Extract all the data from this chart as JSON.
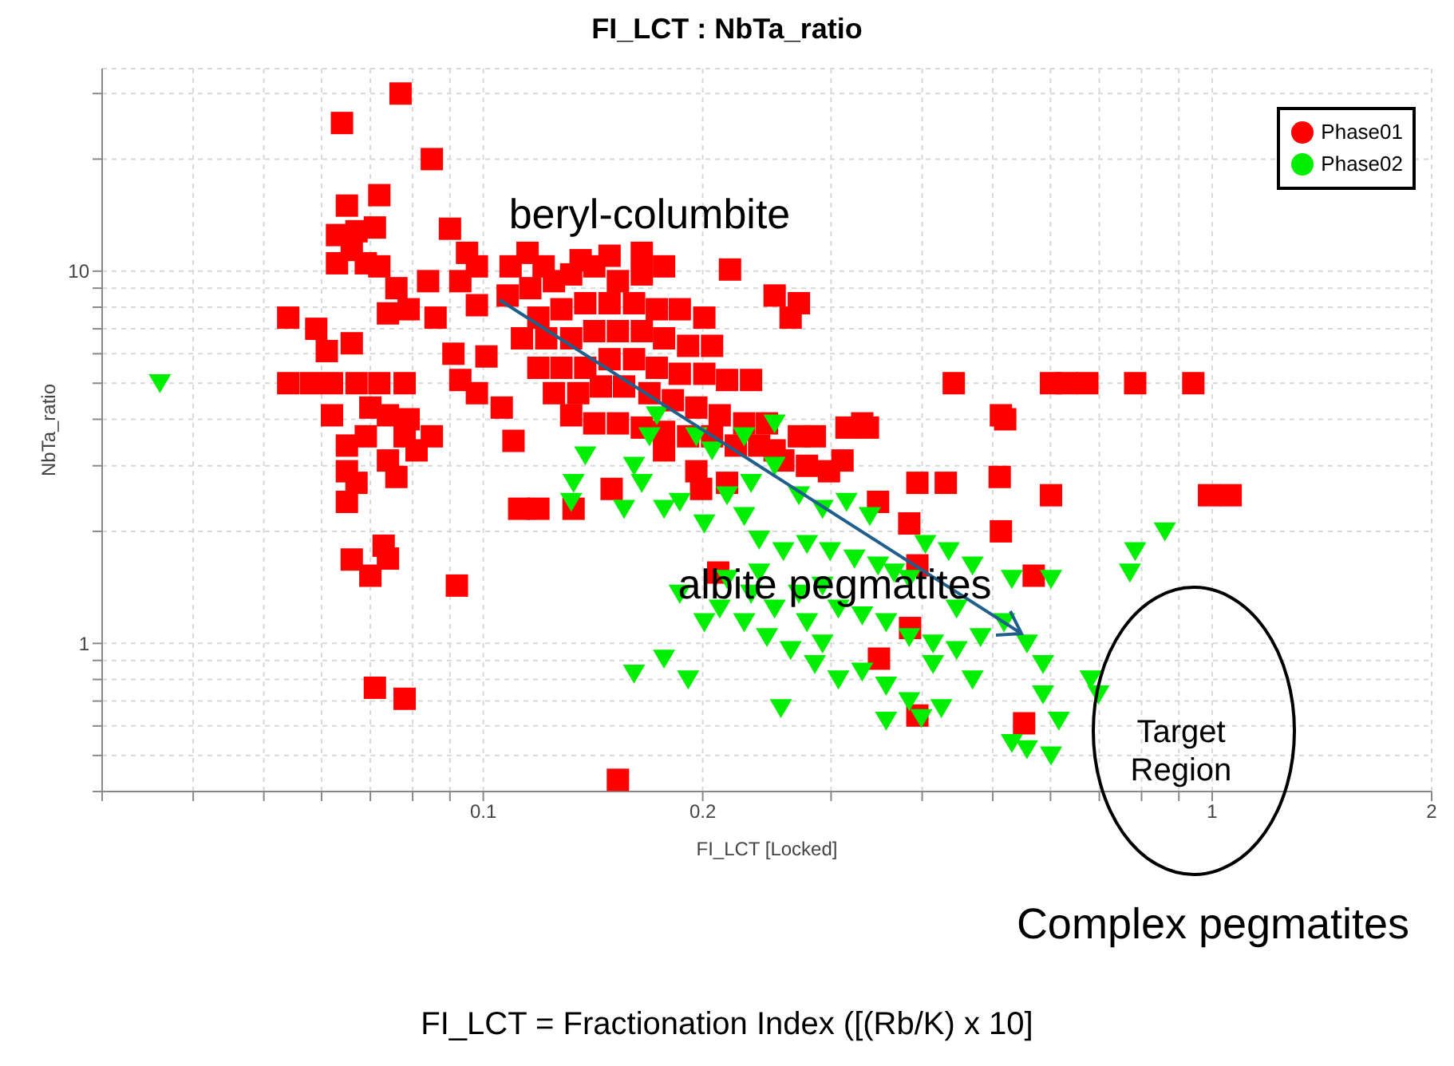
{
  "chart_data": {
    "type": "scatter",
    "title": "FI_LCT : NbTa_ratio",
    "xlabel": "FI_LCT [Locked]",
    "ylabel": "NbTa_ratio",
    "log": "xy",
    "grid": true,
    "legend": "top right",
    "xlim": [
      0.03,
      2
    ],
    "ylim": [
      0.4,
      35
    ],
    "xticks": [
      {
        "value": 0.03,
        "label": null
      },
      {
        "value": 0.04,
        "label": null
      },
      {
        "value": 0.05,
        "label": null
      },
      {
        "value": 0.06,
        "label": null
      },
      {
        "value": 0.07,
        "label": null
      },
      {
        "value": 0.08,
        "label": null
      },
      {
        "value": 0.09,
        "label": null
      },
      0.1,
      0.2,
      {
        "value": 0.3,
        "label": null
      },
      {
        "value": 0.4,
        "label": null
      },
      {
        "value": 0.5,
        "label": null
      },
      {
        "value": 0.6,
        "label": null
      },
      {
        "value": 0.7,
        "label": null
      },
      {
        "value": 0.8,
        "label": null
      },
      {
        "value": 0.9,
        "label": null
      },
      1,
      2
    ],
    "yticks": [
      {
        "value": 0.4,
        "label": null
      },
      {
        "value": 0.5,
        "label": null
      },
      {
        "value": 0.6,
        "label": null
      },
      {
        "value": 0.7,
        "label": null
      },
      {
        "value": 0.8,
        "label": null
      },
      {
        "value": 0.9,
        "label": null
      },
      1,
      {
        "value": 2,
        "label": null
      },
      {
        "value": 3,
        "label": null
      },
      {
        "value": 4,
        "label": null
      },
      {
        "value": 5,
        "label": null
      },
      {
        "value": 6,
        "label": null
      },
      {
        "value": 7,
        "label": null
      },
      {
        "value": 8,
        "label": null
      },
      {
        "value": 9,
        "label": null
      },
      10,
      {
        "value": 20,
        "label": null
      },
      {
        "value": 30,
        "label": null
      }
    ],
    "series": [
      {
        "name": "Phase01",
        "color": "#ff0000",
        "marker": "square",
        "x": [
          0.077,
          0.064,
          0.085,
          0.072,
          0.065,
          0.063,
          0.067,
          0.071,
          0.09,
          0.095,
          0.063,
          0.066,
          0.069,
          0.072,
          0.054,
          0.059,
          0.061,
          0.066,
          0.074,
          0.079,
          0.086,
          0.093,
          0.098,
          0.084,
          0.076,
          0.054,
          0.058,
          0.062,
          0.067,
          0.072,
          0.078,
          0.07,
          0.074,
          0.079,
          0.069,
          0.078,
          0.081,
          0.062,
          0.065,
          0.065,
          0.067,
          0.076,
          0.074,
          0.085,
          0.093,
          0.091,
          0.101,
          0.098,
          0.11,
          0.106,
          0.098,
          0.109,
          0.115,
          0.121,
          0.108,
          0.116,
          0.125,
          0.132,
          0.142,
          0.153,
          0.165,
          0.177,
          0.119,
          0.128,
          0.138,
          0.149,
          0.161,
          0.173,
          0.186,
          0.201,
          0.113,
          0.122,
          0.132,
          0.142,
          0.153,
          0.165,
          0.177,
          0.191,
          0.206,
          0.119,
          0.128,
          0.138,
          0.149,
          0.161,
          0.173,
          0.186,
          0.201,
          0.216,
          0.233,
          0.125,
          0.135,
          0.145,
          0.156,
          0.169,
          0.182,
          0.196,
          0.211,
          0.228,
          0.245,
          0.132,
          0.142,
          0.153,
          0.165,
          0.177,
          0.191,
          0.206,
          0.222,
          0.239,
          0.258,
          0.278,
          0.298,
          0.311,
          0.331,
          0.177,
          0.196,
          0.216,
          0.251,
          0.271,
          0.285,
          0.315,
          0.337,
          0.136,
          0.149,
          0.165,
          0.218,
          0.251,
          0.271,
          0.264,
          0.442,
          0.601,
          0.632,
          0.674,
          0.784,
          0.942,
          0.52,
          0.394,
          0.431,
          0.511,
          0.513,
          0.601,
          0.99,
          1.06,
          0.348,
          0.384,
          0.513,
          0.394,
          0.569,
          0.21,
          0.199,
          0.15,
          0.133,
          0.119,
          0.112,
          0.385,
          0.349,
          0.394,
          0.552,
          0.153,
          0.071,
          0.078,
          0.092,
          0.066,
          0.07,
          0.074,
          0.073,
          0.065
        ],
        "values": [
          30,
          25,
          20,
          16,
          15,
          12.5,
          12.8,
          13.1,
          13,
          11.2,
          10.5,
          11.4,
          10.5,
          10.3,
          7.5,
          7,
          6.1,
          6.4,
          7.7,
          7.9,
          7.5,
          9.4,
          10.3,
          9.4,
          9,
          5,
          5,
          5,
          5,
          5,
          5,
          4.3,
          4.1,
          4,
          3.6,
          3.6,
          3.3,
          4.1,
          3.4,
          2.9,
          2.7,
          2.8,
          3.1,
          3.6,
          5.1,
          6,
          5.9,
          4.7,
          3.5,
          4.3,
          8.1,
          10.3,
          11.2,
          10.3,
          8.6,
          9,
          9.4,
          9.8,
          10.3,
          9.4,
          9.8,
          10.3,
          7.5,
          7.9,
          8.2,
          8.2,
          8.2,
          7.9,
          7.9,
          7.5,
          6.6,
          6.6,
          6.6,
          6.9,
          6.9,
          6.9,
          6.6,
          6.3,
          6.3,
          5.5,
          5.5,
          5.5,
          5.8,
          5.8,
          5.5,
          5.3,
          5.3,
          5.1,
          5.1,
          4.7,
          4.7,
          4.9,
          4.9,
          4.7,
          4.5,
          4.3,
          4.1,
          3.9,
          3.9,
          4.1,
          3.9,
          3.9,
          3.8,
          3.7,
          3.6,
          3.6,
          3.4,
          3.4,
          3.1,
          3,
          2.9,
          3.1,
          3.9,
          3.3,
          2.9,
          2.7,
          3.3,
          3.6,
          3.6,
          3.8,
          3.8,
          10.7,
          11,
          11.2,
          10.1,
          8.6,
          8.2,
          7.5,
          5,
          5,
          5,
          5,
          5,
          5,
          4,
          2.7,
          2.7,
          2.8,
          4.1,
          2.5,
          2.5,
          2.5,
          2.4,
          2.1,
          2,
          1.62,
          1.52,
          1.55,
          2.6,
          2.6,
          2.3,
          2.3,
          2.3,
          1.1,
          0.91,
          0.64,
          0.61,
          0.43,
          0.76,
          0.71,
          1.43,
          1.68,
          1.52,
          1.69,
          1.83,
          2.4
        ]
      },
      {
        "name": "Phase02",
        "color": "#00ee00",
        "marker": "triangle",
        "x": [
          0.036,
          0.138,
          0.133,
          0.156,
          0.132,
          0.169,
          0.161,
          0.186,
          0.177,
          0.201,
          0.216,
          0.233,
          0.251,
          0.271,
          0.292,
          0.315,
          0.339,
          0.228,
          0.239,
          0.258,
          0.278,
          0.299,
          0.323,
          0.348,
          0.366,
          0.384,
          0.404,
          0.435,
          0.469,
          0.531,
          0.601,
          0.216,
          0.233,
          0.251,
          0.271,
          0.292,
          0.307,
          0.331,
          0.357,
          0.384,
          0.414,
          0.446,
          0.481,
          0.518,
          0.557,
          0.586,
          0.211,
          0.228,
          0.245,
          0.264,
          0.285,
          0.307,
          0.331,
          0.357,
          0.384,
          0.414,
          0.446,
          0.469,
          0.586,
          0.616,
          0.557,
          0.531,
          0.601,
          0.681,
          0.698,
          0.784,
          0.861,
          0.771,
          0.425,
          0.399,
          0.357,
          0.177,
          0.191,
          0.161,
          0.256,
          0.239,
          0.201,
          0.186,
          0.278,
          0.292,
          0.165,
          0.196,
          0.206,
          0.173,
          0.228,
          0.251
        ],
        "values": [
          5,
          3.2,
          2.7,
          2.3,
          2.4,
          3.6,
          3,
          2.4,
          2.3,
          2.1,
          2.5,
          2.7,
          3,
          2.5,
          2.3,
          2.4,
          2.2,
          2.2,
          1.9,
          1.77,
          1.85,
          1.77,
          1.69,
          1.62,
          1.55,
          1.49,
          1.85,
          1.77,
          1.62,
          1.49,
          1.49,
          1.49,
          1.36,
          1.24,
          1.36,
          1.43,
          1.24,
          1.19,
          1.14,
          1.04,
          1,
          0.96,
          1.04,
          1.14,
          1,
          0.88,
          1.24,
          1.14,
          1.04,
          0.96,
          0.88,
          0.8,
          0.84,
          0.77,
          0.7,
          0.88,
          1.24,
          0.8,
          0.73,
          0.62,
          0.52,
          0.54,
          0.5,
          0.8,
          0.73,
          1.77,
          2,
          1.55,
          0.67,
          0.63,
          0.62,
          0.91,
          0.8,
          0.83,
          0.67,
          1.55,
          1.14,
          1.36,
          1.14,
          1,
          2.7,
          3.6,
          3.3,
          4.1,
          3.6,
          3.9
        ]
      }
    ],
    "annotations": [
      "beryl-columbite",
      "albite pegmatites",
      "Target Region",
      "Complex pegmatites",
      "FI_LCT = Fractionation Index ([(Rb/K) x 10]"
    ]
  }
}
